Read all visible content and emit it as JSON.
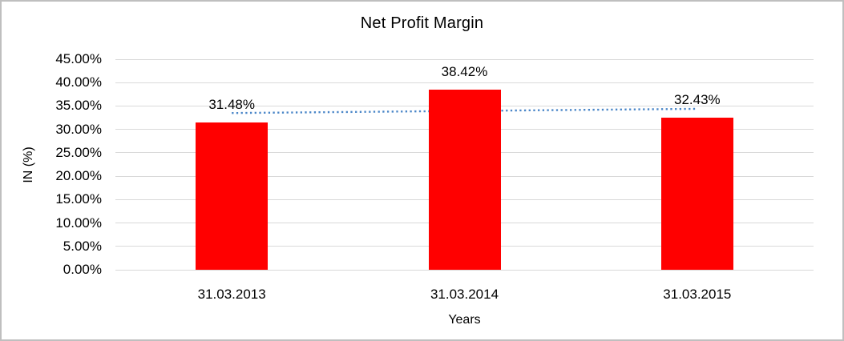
{
  "chart_data": {
    "type": "bar",
    "title": "Net Profit Margin",
    "xlabel": "Years",
    "ylabel": "IN (%)",
    "categories": [
      "31.03.2013",
      "31.03.2014",
      "31.03.2015"
    ],
    "values": [
      31.48,
      38.42,
      32.43
    ],
    "data_labels": [
      "31.48%",
      "38.42%",
      "32.43%"
    ],
    "ylim": [
      0,
      45
    ],
    "yticks": [
      {
        "label": "45.00%",
        "value": 45
      },
      {
        "label": "40.00%",
        "value": 40
      },
      {
        "label": "35.00%",
        "value": 35
      },
      {
        "label": "30.00%",
        "value": 30
      },
      {
        "label": "25.00%",
        "value": 25
      },
      {
        "label": "20.00%",
        "value": 20
      },
      {
        "label": "15.00%",
        "value": 15
      },
      {
        "label": "10.00%",
        "value": 10
      },
      {
        "label": "5.00%",
        "value": 5
      },
      {
        "label": "0.00%",
        "value": 0
      }
    ],
    "grid": true,
    "legend": "none",
    "colors": {
      "bar": "#ff0000",
      "trendline": "#4a86c8",
      "gridline": "#d9d9d9",
      "text": "#000000",
      "frame_border": "#bfbfbf",
      "background": "#ffffff"
    },
    "trendline": {
      "type": "linear",
      "style": "dotted",
      "start_value": 33.5,
      "end_value": 34.4
    }
  }
}
